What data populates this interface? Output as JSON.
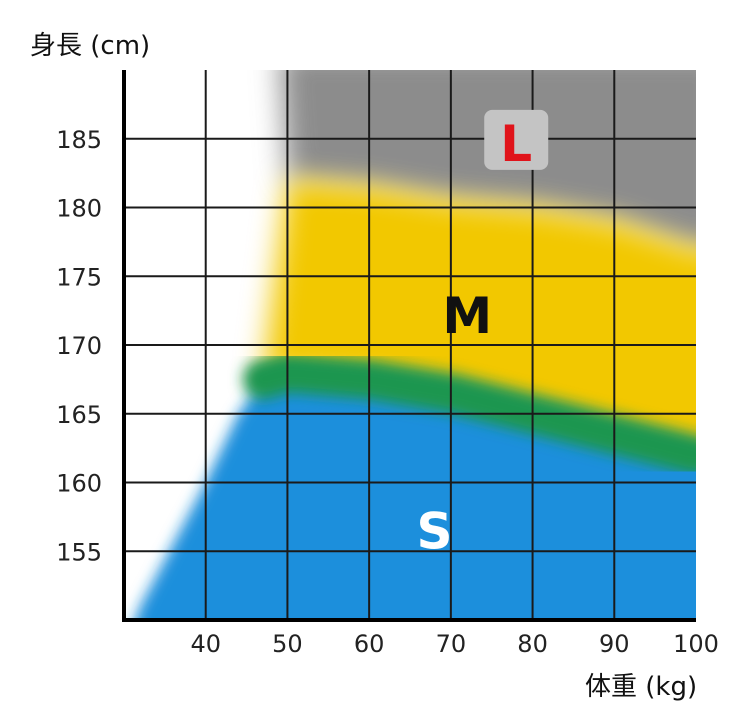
{
  "chart_data": {
    "type": "heatmap",
    "ylabel": "身長 (cm)",
    "xlabel": "体重 (kg)",
    "xlim": [
      30,
      100
    ],
    "ylim": [
      150,
      190
    ],
    "x_ticks": [
      40,
      50,
      60,
      70,
      80,
      90,
      100
    ],
    "y_ticks": [
      155,
      160,
      165,
      170,
      175,
      180,
      185
    ],
    "grid": true,
    "zones": [
      {
        "label": "S",
        "color": "#1a8fdc",
        "label_x": 68,
        "label_y": 156.5
      },
      {
        "label": "M",
        "color": "#f2c800",
        "label_x": 72,
        "label_y": 172.2
      },
      {
        "label": "L",
        "color": "#e0131a",
        "label_x": 78,
        "label_y": 184.7
      }
    ],
    "boundaries": {
      "S_M": [
        [
          47,
          167.5
        ],
        [
          50,
          168
        ],
        [
          60,
          167.5
        ],
        [
          70,
          166.5
        ],
        [
          80,
          165
        ],
        [
          90,
          163.5
        ],
        [
          100,
          162
        ]
      ],
      "M_L": [
        [
          50,
          182
        ],
        [
          60,
          181.5
        ],
        [
          70,
          180.5
        ],
        [
          80,
          180
        ],
        [
          90,
          179
        ],
        [
          100,
          177
        ]
      ]
    },
    "colors": {
      "transition_green": "#1c9650",
      "top_gray": "#8c8c8c"
    }
  }
}
